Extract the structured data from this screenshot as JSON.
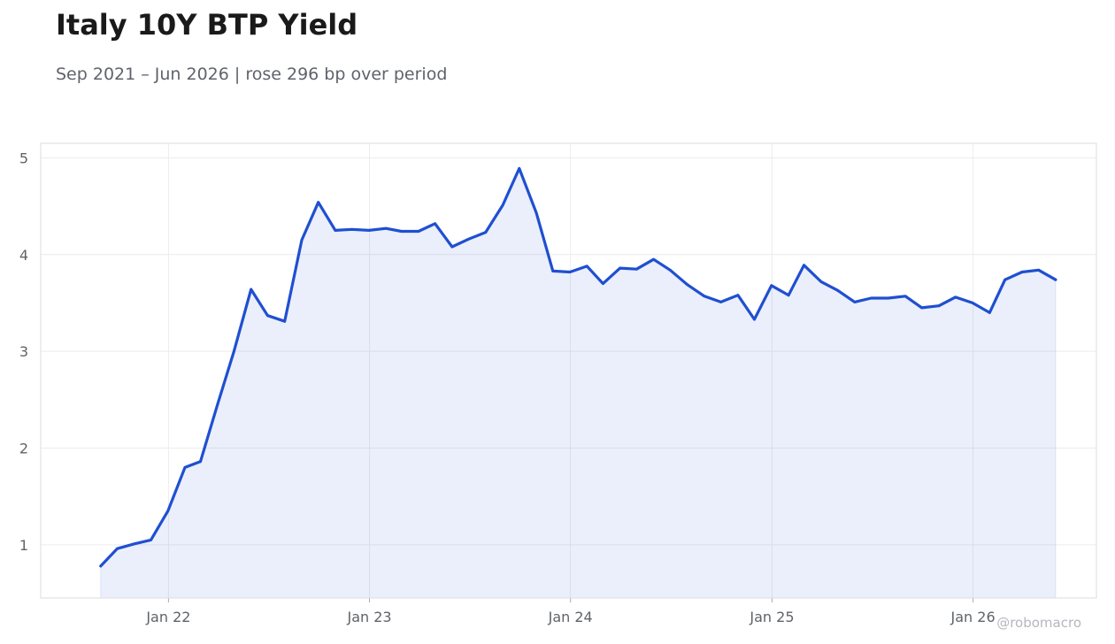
{
  "header": {
    "title": "Italy 10Y BTP Yield",
    "subtitle": "Sep 2021 – Jun 2026 | rose 296 bp over period"
  },
  "credit": "@robomacro",
  "colors": {
    "line": "#1f4fd1",
    "fill": "#1f4fd1",
    "grid": "#ececec",
    "frame": "#dddddd"
  },
  "chart_data": {
    "type": "area",
    "grid": true,
    "ylim": [
      0.45,
      5.15
    ],
    "yticks": [
      1,
      2,
      3,
      4,
      5
    ],
    "xticks": [
      {
        "label": "Jan 22",
        "date": "2022-01-01"
      },
      {
        "label": "Jan 23",
        "date": "2023-01-01"
      },
      {
        "label": "Jan 24",
        "date": "2024-01-01"
      },
      {
        "label": "Jan 25",
        "date": "2025-01-01"
      },
      {
        "label": "Jan 26",
        "date": "2026-01-01"
      }
    ],
    "xlim": [
      "2021-05-14",
      "2026-08-13"
    ],
    "series": [
      {
        "x": [
          "2021-08-31",
          "2021-09-30",
          "2021-10-31",
          "2021-11-30",
          "2021-12-31",
          "2022-01-31",
          "2022-02-28",
          "2022-03-31",
          "2022-04-30",
          "2022-05-31",
          "2022-06-30",
          "2022-07-31",
          "2022-08-31",
          "2022-09-30",
          "2022-10-31",
          "2022-11-30",
          "2022-12-31",
          "2023-01-31",
          "2023-02-28",
          "2023-03-31",
          "2023-04-30",
          "2023-05-31",
          "2023-06-30",
          "2023-07-31",
          "2023-08-31",
          "2023-09-30",
          "2023-10-31",
          "2023-11-30",
          "2023-12-31",
          "2024-01-31",
          "2024-02-29",
          "2024-03-31",
          "2024-04-30",
          "2024-05-31",
          "2024-06-30",
          "2024-07-31",
          "2024-08-31",
          "2024-09-30",
          "2024-10-31",
          "2024-11-30",
          "2024-12-31",
          "2025-01-31",
          "2025-02-28",
          "2025-03-31",
          "2025-04-30",
          "2025-05-31",
          "2025-06-30",
          "2025-07-31",
          "2025-08-31",
          "2025-09-30",
          "2025-10-31",
          "2025-11-30",
          "2025-12-31",
          "2026-01-31",
          "2026-02-28",
          "2026-03-31",
          "2026-04-30",
          "2026-05-31"
        ],
        "y": [
          0.78,
          0.96,
          1.01,
          1.05,
          1.35,
          1.8,
          1.86,
          2.45,
          3.0,
          3.64,
          3.37,
          3.31,
          4.15,
          4.54,
          4.25,
          4.26,
          4.25,
          4.27,
          4.24,
          4.24,
          4.32,
          4.08,
          4.16,
          4.23,
          4.51,
          4.89,
          4.43,
          3.83,
          3.82,
          3.88,
          3.7,
          3.86,
          3.85,
          3.95,
          3.84,
          3.69,
          3.57,
          3.51,
          3.58,
          3.33,
          3.68,
          3.58,
          3.89,
          3.72,
          3.63,
          3.51,
          3.55,
          3.55,
          3.57,
          3.45,
          3.47,
          3.56,
          3.5,
          3.4,
          3.74,
          3.82,
          3.84,
          3.74
        ]
      }
    ]
  }
}
